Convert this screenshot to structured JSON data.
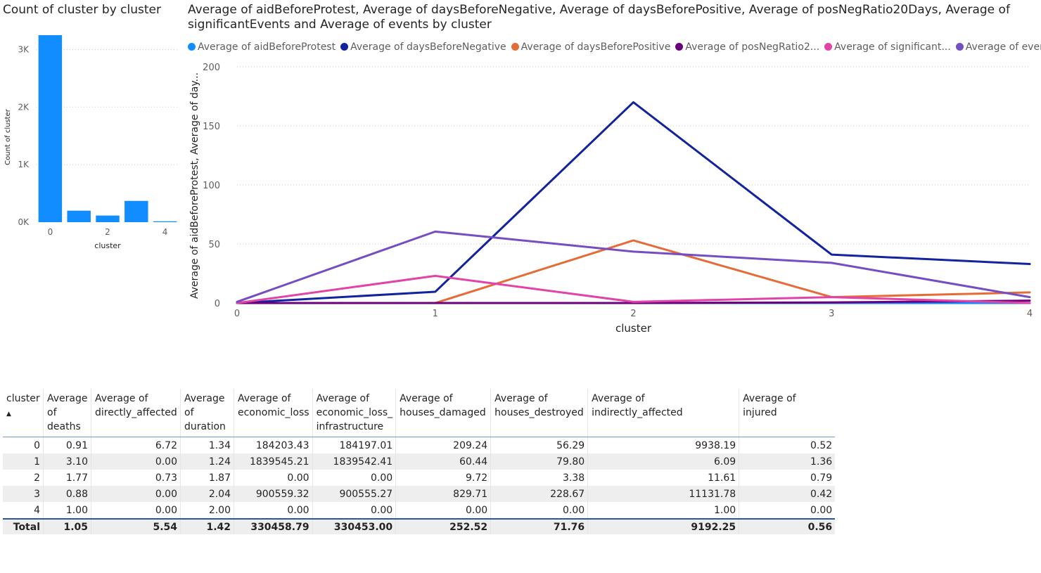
{
  "bar_chart": {
    "title": "Count of cluster by cluster",
    "bar_color": "#118dff",
    "chart_data": {
      "type": "bar",
      "title": "Count of cluster by cluster",
      "categories": [
        0,
        1,
        2,
        3,
        4
      ],
      "values": [
        3250,
        200,
        115,
        370,
        15
      ],
      "xlabel": "cluster",
      "ylabel": "Count of cluster",
      "ylim": [
        0,
        3250
      ],
      "y_ticks": [
        {
          "value": 0,
          "label": "0K"
        },
        {
          "value": 1000,
          "label": "1K"
        },
        {
          "value": 2000,
          "label": "2K"
        },
        {
          "value": 3000,
          "label": "3K"
        }
      ],
      "x_ticks": [
        {
          "value": 0,
          "label": "0"
        },
        {
          "value": 2,
          "label": "2"
        },
        {
          "value": 4,
          "label": "4"
        }
      ],
      "grid": true
    }
  },
  "line_chart": {
    "title": "Average of aidBeforeProtest, Average of daysBeforeNegative, Average of daysBeforePositive, Average of posNegRatio20Days, Average of significantEvents and Average of events by cluster",
    "legend": [
      {
        "label": "Average of aidBeforeProtest",
        "color": "#118dff"
      },
      {
        "label": "Average of daysBeforeNegative",
        "color": "#12239e"
      },
      {
        "label": "Average of daysBeforePositive",
        "color": "#e66c37"
      },
      {
        "label": "Average of posNegRatio2...",
        "color": "#6b007b"
      },
      {
        "label": "Average of significant...",
        "color": "#e044a7"
      },
      {
        "label": "Average of events",
        "color": "#744ec2"
      }
    ],
    "chart_data": {
      "type": "line",
      "title": "Average of aidBeforeProtest, Average of daysBeforeNegative, Average of daysBeforePositive, Average of posNegRatio20Days, Average of significantEvents and Average of events by cluster",
      "x": [
        0,
        1,
        2,
        3,
        4
      ],
      "xlabel": "cluster",
      "ylabel": "Average of aidBeforeProtest, Average of day...",
      "ylim": [
        0,
        200
      ],
      "xlim": [
        0,
        4
      ],
      "y_ticks": [
        0,
        50,
        100,
        150,
        200
      ],
      "x_ticks": [
        0,
        1,
        2,
        3,
        4
      ],
      "grid": true,
      "legend_position": "top-left",
      "series": [
        {
          "name": "Average of aidBeforeProtest",
          "color": "#118dff",
          "values": [
            0,
            0,
            0,
            0,
            0
          ]
        },
        {
          "name": "Average of daysBeforeNegative",
          "color": "#12239e",
          "values": [
            0,
            9.5,
            170,
            41,
            33
          ]
        },
        {
          "name": "Average of daysBeforePositive",
          "color": "#e66c37",
          "values": [
            0,
            0,
            53,
            5,
            9
          ]
        },
        {
          "name": "Average of posNegRatio20Days",
          "color": "#6b007b",
          "values": [
            0,
            0,
            0,
            0.5,
            2
          ]
        },
        {
          "name": "Average of significantEvents",
          "color": "#e044a7",
          "values": [
            0,
            23,
            1,
            5,
            0
          ]
        },
        {
          "name": "Average of events",
          "color": "#744ec2",
          "values": [
            1,
            60.5,
            43.5,
            34,
            5
          ]
        }
      ]
    }
  },
  "table": {
    "columns": [
      "cluster",
      "Average of deaths",
      "Average of directly_affected",
      "Average of duration",
      "Average of economic_loss",
      "Average of economic_loss_ infrastructure",
      "Average of houses_damaged",
      "Average of houses_destroyed",
      "Average of indirectly_affected",
      "Average of injured"
    ],
    "rows": [
      [
        "0",
        "0.91",
        "6.72",
        "1.34",
        "184203.43",
        "184197.01",
        "209.24",
        "56.29",
        "9938.19",
        "0.52"
      ],
      [
        "1",
        "3.10",
        "0.00",
        "1.24",
        "1839545.21",
        "1839542.41",
        "60.44",
        "79.80",
        "6.09",
        "1.36"
      ],
      [
        "2",
        "1.77",
        "0.73",
        "1.87",
        "0.00",
        "0.00",
        "9.72",
        "3.38",
        "11.61",
        "0.79"
      ],
      [
        "3",
        "0.88",
        "0.00",
        "2.04",
        "900559.32",
        "900555.27",
        "829.71",
        "228.67",
        "11131.78",
        "0.42"
      ],
      [
        "4",
        "1.00",
        "0.00",
        "2.00",
        "0.00",
        "0.00",
        "0.00",
        "0.00",
        "1.00",
        "0.00"
      ]
    ],
    "total": [
      "Total",
      "1.05",
      "5.54",
      "1.42",
      "330458.79",
      "330453.00",
      "252.52",
      "71.76",
      "9192.25",
      "0.56"
    ],
    "sort_icon": "sort-ascending-icon"
  }
}
